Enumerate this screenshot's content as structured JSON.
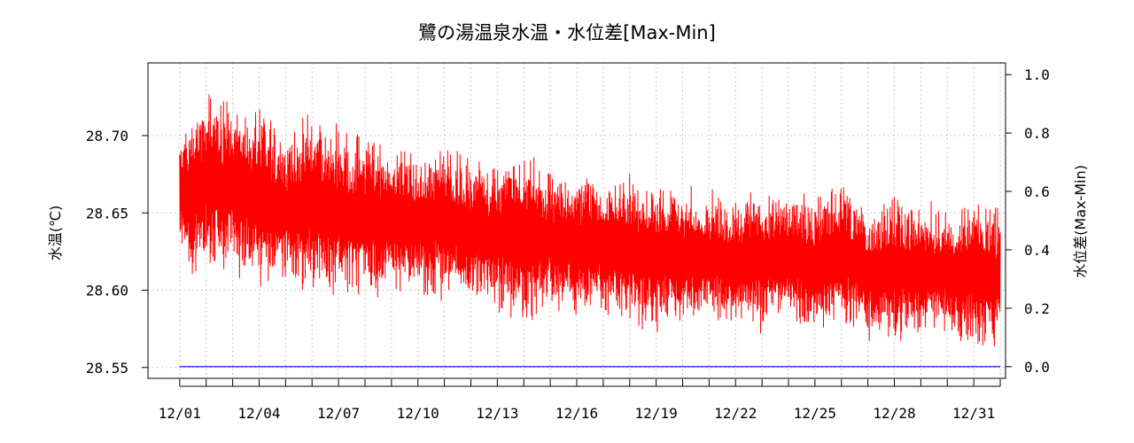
{
  "chart_data": {
    "type": "line",
    "title": "鷺の湯温泉水温・水位差[Max-Min]",
    "xlabel": "",
    "x_tick_labels": [
      "12/01",
      "12/04",
      "12/07",
      "12/10",
      "12/13",
      "12/16",
      "12/19",
      "12/22",
      "12/25",
      "12/28",
      "12/31"
    ],
    "x_tick_days": [
      1,
      4,
      7,
      10,
      13,
      16,
      19,
      22,
      25,
      28,
      31
    ],
    "x_minor_tick_days": [
      2,
      3,
      5,
      6,
      8,
      9,
      11,
      12,
      14,
      15,
      17,
      18,
      20,
      21,
      23,
      24,
      26,
      27,
      29,
      30,
      32
    ],
    "x_range_days": [
      -0.2,
      32.2
    ],
    "x_data_range_days": [
      1.0,
      32.0
    ],
    "left_axis": {
      "label": "水温(℃)",
      "range": [
        28.543,
        28.747
      ],
      "ticks": [
        28.55,
        28.6,
        28.65,
        28.7
      ],
      "tick_labels": [
        "28.55",
        "28.60",
        "28.65",
        "28.70"
      ]
    },
    "right_axis": {
      "label": "水位差(Max-Min)",
      "range": [
        -0.04,
        1.04
      ],
      "ticks": [
        0.0,
        0.2,
        0.4,
        0.6,
        0.8,
        1.0
      ],
      "tick_labels": [
        "0.0",
        "0.2",
        "0.4",
        "0.6",
        "0.8",
        "1.0"
      ]
    },
    "grid": true,
    "series": [
      {
        "axis": "left",
        "color": "#ff0000",
        "envelope_x_days": [
          1.0,
          1.3,
          2.0,
          3.0,
          4.0,
          5.0,
          6.0,
          7.0,
          8.0,
          9.0,
          10.0,
          11.0,
          12.0,
          13.0,
          14.0,
          15.0,
          16.0,
          17.0,
          18.0,
          19.0,
          20.0,
          21.0,
          22.0,
          23.0,
          24.0,
          25.0,
          26.0,
          27.0,
          28.0,
          29.0,
          30.0,
          31.0,
          32.0
        ],
        "upper_envelope": [
          28.703,
          28.715,
          28.73,
          28.727,
          28.72,
          28.705,
          28.718,
          28.71,
          28.705,
          28.7,
          28.69,
          28.698,
          28.69,
          28.685,
          28.695,
          28.68,
          28.68,
          28.675,
          28.68,
          28.67,
          28.67,
          28.668,
          28.66,
          28.672,
          28.665,
          28.665,
          28.67,
          28.658,
          28.665,
          28.66,
          28.655,
          28.66,
          28.66
        ],
        "lower_envelope": [
          28.635,
          28.6,
          28.61,
          28.605,
          28.6,
          28.595,
          28.595,
          28.59,
          28.59,
          28.592,
          28.595,
          28.59,
          28.588,
          28.585,
          28.575,
          28.585,
          28.578,
          28.58,
          28.575,
          28.57,
          28.575,
          28.575,
          28.575,
          28.57,
          28.575,
          28.565,
          28.575,
          28.565,
          28.56,
          28.565,
          28.57,
          28.56,
          28.555
        ]
      },
      {
        "axis": "right",
        "color": "#0000ff",
        "x_days": [
          1.0,
          32.0
        ],
        "values": [
          0.0,
          0.0
        ]
      }
    ]
  }
}
